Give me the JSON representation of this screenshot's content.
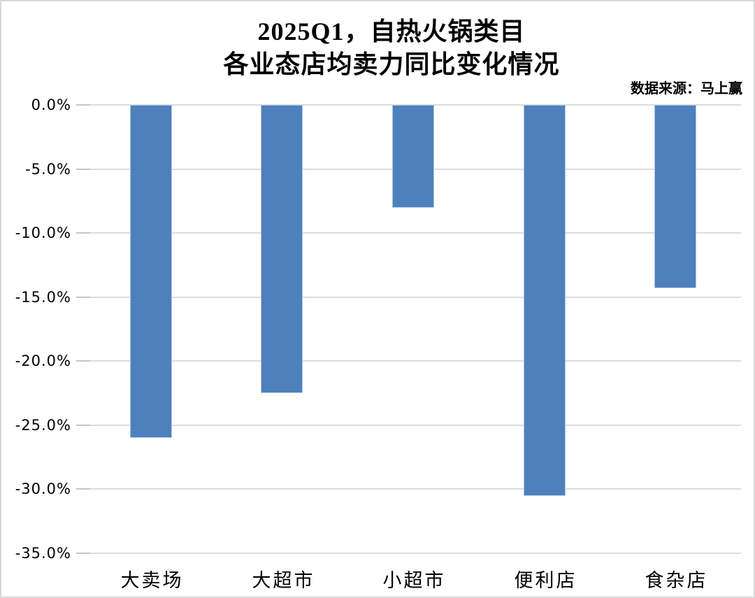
{
  "header": {
    "title_line1": "2025Q1，自热火锅类目",
    "title_line2": "各业态店均卖力同比变化情况",
    "source": "数据来源：马上赢"
  },
  "chart_data": {
    "type": "bar",
    "title": "2025Q1，自热火锅类目 各业态店均卖力同比变化情况",
    "source": "数据来源：马上赢",
    "categories": [
      "大卖场",
      "大超市",
      "小超市",
      "便利店",
      "食杂店"
    ],
    "values": [
      -26.0,
      -22.5,
      -8.0,
      -30.5,
      -14.3
    ],
    "unit": "%",
    "ylim": [
      -35,
      0
    ],
    "ytick_step": 5,
    "ytick_labels": [
      "0.0%",
      "-5.0%",
      "-10.0%",
      "-15.0%",
      "-20.0%",
      "-25.0%",
      "-30.0%",
      "-35.0%"
    ],
    "grid": true,
    "legend": false,
    "bar_color": "#4e80bc",
    "bar_border_color": "#aec7e8",
    "gridline_color": "#dcdcdc",
    "tick_color": "#c6c6c6"
  }
}
